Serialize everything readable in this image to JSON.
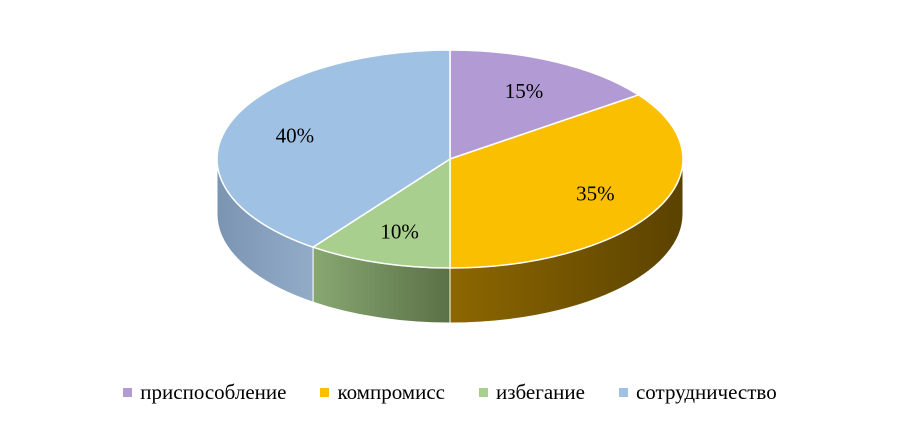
{
  "chart_data": {
    "type": "pie",
    "style": "3d",
    "categories": [
      "приспособление",
      "компромисс",
      "избегание",
      "сотрудничество"
    ],
    "values": [
      15,
      35,
      10,
      40
    ],
    "labels": [
      "15%",
      "35%",
      "10%",
      "40%"
    ],
    "colors": [
      "#b29bd4",
      "#fbbf02",
      "#a8cf8d",
      "#9fc2e4"
    ],
    "side_colors": [
      "#8a73ad",
      "#6e5100",
      "#6d8a55",
      "#7f9ab8"
    ],
    "legend_position": "bottom"
  }
}
